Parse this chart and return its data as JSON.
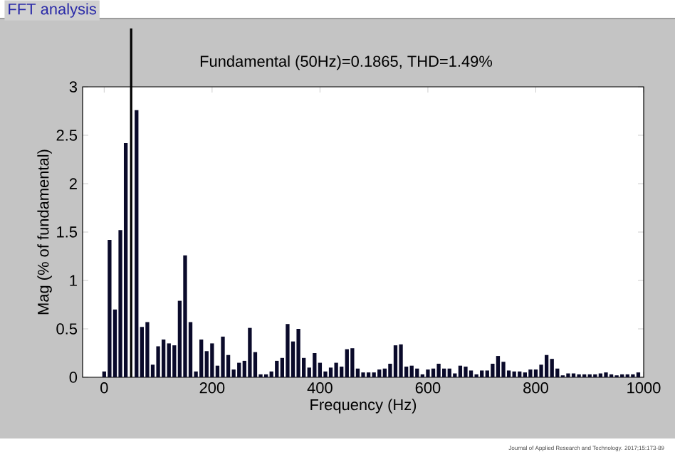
{
  "chart_data": {
    "type": "bar",
    "title": "FFT analysis",
    "subtitle": "Fundamental (50Hz)=0.1865, THD=1.49%",
    "xlabel": "Frequency (Hz)",
    "ylabel": "Mag (% of fundamental)",
    "annotations": [
      "Journal of Applied Research and Technology. 2017;15:173-89"
    ],
    "x": [
      0,
      10,
      20,
      30,
      40,
      50,
      60,
      70,
      80,
      90,
      100,
      110,
      120,
      130,
      140,
      150,
      160,
      170,
      180,
      190,
      200,
      210,
      220,
      230,
      240,
      250,
      260,
      270,
      280,
      290,
      300,
      310,
      320,
      330,
      340,
      350,
      360,
      370,
      380,
      390,
      400,
      410,
      420,
      430,
      440,
      450,
      460,
      470,
      480,
      490,
      500,
      510,
      520,
      530,
      540,
      550,
      560,
      570,
      580,
      590,
      600,
      610,
      620,
      630,
      640,
      650,
      660,
      670,
      680,
      690,
      700,
      710,
      720,
      730,
      740,
      750,
      760,
      770,
      780,
      790,
      800,
      810,
      820,
      830,
      840,
      850,
      860,
      870,
      880,
      890,
      900,
      910,
      920,
      930,
      940,
      950,
      960,
      970,
      980,
      990
    ],
    "values": [
      0.06,
      1.42,
      0.7,
      1.52,
      2.42,
      null,
      2.76,
      0.52,
      0.57,
      0.13,
      0.32,
      0.39,
      0.35,
      0.33,
      0.79,
      1.26,
      0.57,
      0.06,
      0.39,
      0.27,
      0.35,
      0.12,
      0.42,
      0.23,
      0.08,
      0.15,
      0.17,
      0.51,
      0.26,
      0.03,
      0.03,
      0.06,
      0.17,
      0.2,
      0.55,
      0.37,
      0.5,
      0.2,
      0.1,
      0.25,
      0.15,
      0.06,
      0.1,
      0.15,
      0.11,
      0.29,
      0.3,
      0.09,
      0.05,
      0.05,
      0.05,
      0.08,
      0.09,
      0.14,
      0.33,
      0.34,
      0.11,
      0.12,
      0.09,
      0.03,
      0.08,
      0.09,
      0.14,
      0.09,
      0.09,
      0.04,
      0.12,
      0.11,
      0.07,
      0.03,
      0.07,
      0.07,
      0.14,
      0.22,
      0.16,
      0.07,
      0.06,
      0.06,
      0.05,
      0.08,
      0.08,
      0.13,
      0.23,
      0.19,
      0.09,
      0.02,
      0.04,
      0.04,
      0.03,
      0.03,
      0.03,
      0.03,
      0.04,
      0.05,
      0.03,
      0.02,
      0.03,
      0.03,
      0.03,
      0.05
    ],
    "color": "#0a0a2a",
    "ref_lines": [
      {
        "axis": "x",
        "value": 50,
        "color": "#000000"
      }
    ],
    "xlim": [
      -40,
      1000
    ],
    "ylim": [
      0,
      3
    ],
    "xticks": [
      0,
      200,
      400,
      600,
      800,
      1000
    ],
    "yticks": [
      0,
      0.5,
      1,
      1.5,
      2,
      2.5,
      3
    ],
    "grid": false
  }
}
